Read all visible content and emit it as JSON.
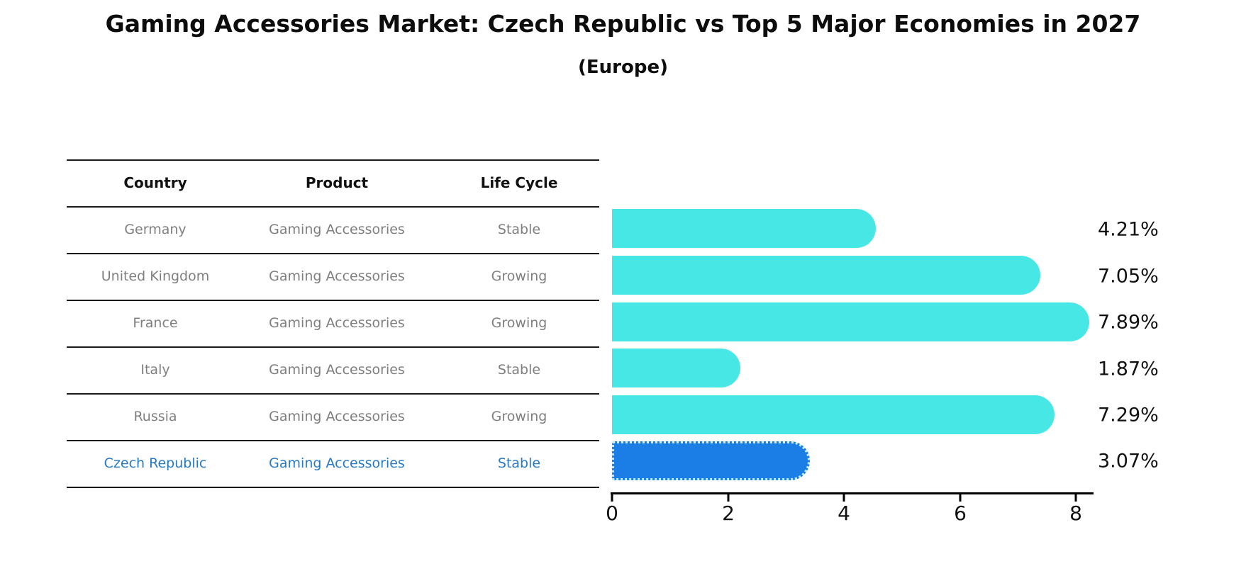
{
  "title": "Gaming Accessories Market: Czech Republic vs Top 5 Major Economies in 2027",
  "subtitle": "(Europe)",
  "table": {
    "headers": [
      "Country",
      "Product",
      "Life Cycle"
    ],
    "rows": [
      {
        "country": "Germany",
        "product": "Gaming Accessories",
        "life_cycle": "Stable",
        "highlighted": false
      },
      {
        "country": "United Kingdom",
        "product": "Gaming Accessories",
        "life_cycle": "Growing",
        "highlighted": false
      },
      {
        "country": "France",
        "product": "Gaming Accessories",
        "life_cycle": "Growing",
        "highlighted": false
      },
      {
        "country": "Italy",
        "product": "Gaming Accessories",
        "life_cycle": "Stable",
        "highlighted": false
      },
      {
        "country": "Russia",
        "product": "Gaming Accessories",
        "life_cycle": "Growing",
        "highlighted": false
      },
      {
        "country": "Czech Republic",
        "product": "Gaming Accessories",
        "life_cycle": "Stable",
        "highlighted": true
      }
    ]
  },
  "chart_data": {
    "type": "bar",
    "orientation": "horizontal",
    "title": "Gaming Accessories Market: Czech Republic vs Top 5 Major Economies in 2027",
    "subtitle": "(Europe)",
    "categories": [
      "Germany",
      "United Kingdom",
      "France",
      "Italy",
      "Russia",
      "Czech Republic"
    ],
    "values": [
      4.21,
      7.05,
      7.89,
      1.87,
      7.29,
      3.07
    ],
    "labels": [
      "4.21%",
      "7.05%",
      "7.89%",
      "1.87%",
      "7.29%",
      "3.07%"
    ],
    "xlabel": "",
    "ylabel": "",
    "xlim": [
      0,
      8.3
    ],
    "xticks": [
      0,
      2,
      4,
      6,
      8
    ],
    "grid": false,
    "legend": "none",
    "bar_color": "#47e7e6",
    "highlight_color": "#1b7de6",
    "highlight_border_color": "#c4eef8",
    "highlight_index": 5,
    "highlight_category": "Czech Republic"
  },
  "colors": {
    "title_text": "#0d0d0d",
    "table_text": "#7f7f7f",
    "table_header_text": "#111111",
    "highlight_text": "#2779c4",
    "axis": "#000000"
  }
}
